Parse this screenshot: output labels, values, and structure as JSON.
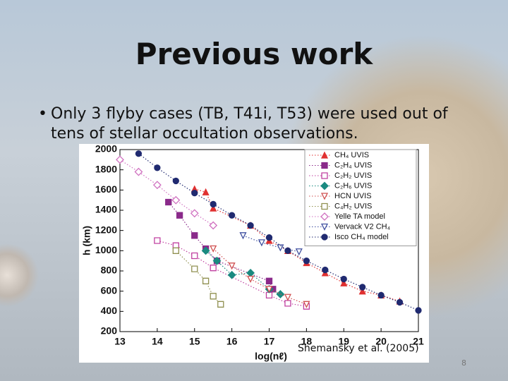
{
  "slide": {
    "title": "Previous work",
    "bullet": "Only 3 flyby cases (TB, T41i, T53) were used out of tens of stellar occultation observations.",
    "citation": "Shemansky et al. (2005)",
    "page_number": "8"
  },
  "chart_data": {
    "type": "scatter",
    "xlabel": "log(nℓ)",
    "ylabel": "h (km)",
    "xlim": [
      13,
      21
    ],
    "xticks": [
      13,
      14,
      15,
      16,
      17,
      18,
      19,
      20,
      21
    ],
    "ylim": [
      200,
      2000
    ],
    "yticks": [
      200,
      400,
      600,
      800,
      1000,
      1200,
      1400,
      1600,
      1800,
      2000
    ],
    "legend": "upper right",
    "series": [
      {
        "name": "CH₄ UVIS",
        "color": "#e03030",
        "marker": "triangle",
        "filled": true,
        "x": [
          15,
          15.3,
          15.5,
          16.5,
          17,
          17.5,
          18,
          18.5,
          19,
          19.5,
          20,
          20.5
        ],
        "values": [
          1610,
          1580,
          1420,
          1250,
          1100,
          1000,
          880,
          780,
          680,
          600,
          560,
          500
        ]
      },
      {
        "name": "C₂H₄ UVIS",
        "color": "#8a2a8a",
        "marker": "square",
        "filled": true,
        "x": [
          14.3,
          14.6,
          15,
          15.3,
          15.6,
          17,
          17.1
        ],
        "values": [
          1480,
          1350,
          1150,
          1020,
          900,
          700,
          620
        ]
      },
      {
        "name": "C₂H₂ UVIS",
        "color": "#c040a0",
        "marker": "square",
        "filled": false,
        "x": [
          14,
          14.5,
          15,
          15.5,
          17,
          17.5,
          18
        ],
        "values": [
          1100,
          1050,
          950,
          830,
          560,
          480,
          450
        ]
      },
      {
        "name": "C₂H₆ UVIS",
        "color": "#1a8a80",
        "marker": "diamond",
        "filled": true,
        "x": [
          15.3,
          15.6,
          16,
          16.5,
          17,
          17.3
        ],
        "values": [
          1000,
          900,
          760,
          780,
          620,
          570
        ]
      },
      {
        "name": "HCN UVIS",
        "color": "#d05050",
        "marker": "triangle-down",
        "filled": false,
        "x": [
          15.5,
          16,
          16.5,
          17,
          17.5,
          18
        ],
        "values": [
          1020,
          850,
          720,
          620,
          540,
          470
        ]
      },
      {
        "name": "C₄H₂ UVIS",
        "color": "#909050",
        "marker": "square",
        "filled": false,
        "x": [
          14.5,
          15,
          15.3,
          15.5,
          15.7
        ],
        "values": [
          1000,
          820,
          700,
          550,
          470
        ]
      },
      {
        "name": "Yelle TA model",
        "color": "#d070c0",
        "marker": "diamond",
        "filled": false,
        "x": [
          13,
          13.5,
          14,
          14.5,
          15,
          15.5
        ],
        "values": [
          1900,
          1780,
          1650,
          1500,
          1370,
          1250
        ]
      },
      {
        "name": "Vervack V2 CH₄",
        "color": "#4050a0",
        "marker": "triangle-down",
        "filled": false,
        "x": [
          16.3,
          16.8,
          17.3,
          17.8
        ],
        "values": [
          1150,
          1080,
          1030,
          990
        ]
      },
      {
        "name": "Isco CH₄ model",
        "color": "#202a70",
        "marker": "circle",
        "filled": true,
        "x": [
          13.5,
          14,
          14.5,
          15,
          15.5,
          16,
          16.5,
          17,
          17.5,
          18,
          18.5,
          19,
          19.5,
          20,
          20.5,
          21
        ],
        "values": [
          1960,
          1820,
          1690,
          1570,
          1460,
          1350,
          1250,
          1130,
          1000,
          900,
          810,
          720,
          640,
          560,
          490,
          410
        ]
      }
    ]
  }
}
